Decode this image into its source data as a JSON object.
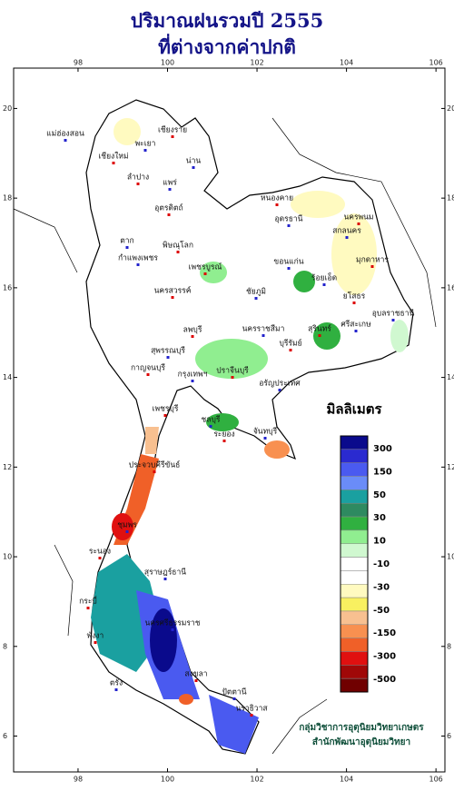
{
  "title": [
    "ปริมาณฝนรวมปี 2555",
    "ที่ต่างจากค่าปกติ"
  ],
  "map": {
    "lonticks": [
      98,
      100,
      102,
      104,
      106
    ],
    "latticks": [
      6,
      8,
      10,
      12,
      14,
      16,
      18,
      20
    ],
    "lonlim": [
      96.56,
      106.2
    ],
    "latlim": [
      5.2,
      20.9
    ],
    "places": [
      "แม่ฮ่องสอน",
      "เชียงราย",
      "พะเยา",
      "เชียงใหม่",
      "น่าน",
      "ลำปาง",
      "แพร่",
      "อุตรดิตถ์",
      "ตาก",
      "พิษณุโลก",
      "กำแพงเพชร",
      "หนองคาย",
      "อุดรธานี",
      "นครพนม",
      "สกลนคร",
      "มุกดาหาร",
      "ขอนแก่น",
      "เพชรบูรณ์",
      "ร้อยเอ็ด",
      "นครสวรรค์",
      "ชัยภูมิ",
      "ยโสธร",
      "อุบลราชธานี",
      "ลพบุรี",
      "นครราชสีมา",
      "สุรินทร์",
      "ศรีสะเกษ",
      "บุรีรัมย์",
      "สุพรรณบุรี",
      "กาญจนบุรี",
      "กรุงเทพฯ",
      "ปราจีนบุรี",
      "อรัญประเทศ",
      "เพชรบุรี",
      "ชลบุรี",
      "ระยอง",
      "จันทบุรี",
      "ประจวบคีรีขันธ์",
      "ชุมพร",
      "ระนอง",
      "สุราษฎร์ธานี",
      "กระบี่",
      "นครศรีธรรมราช",
      "พังงา",
      "ตรัง",
      "สงขลา",
      "ปัตตานี",
      "นราธิวาส"
    ]
  },
  "legend": {
    "title": "มิลลิเมตร",
    "colors": [
      "#0a0a8c",
      "#2a2ad0",
      "#4a5af0",
      "#6a8cf8",
      "#1aa0a0",
      "#2e8a60",
      "#30b040",
      "#90ee90",
      "#d0f8d0",
      "#ffffff",
      "#ffffff",
      "#fffac0",
      "#f8f060",
      "#f8c090",
      "#f89050",
      "#f06028",
      "#e01010",
      "#a00808",
      "#700000"
    ],
    "labels": [
      300,
      150,
      50,
      30,
      10,
      -10,
      -30,
      -50,
      -150,
      -300,
      -500
    ]
  },
  "credits": [
    "กลุ่มวิชาการอุตุนิยมวิทยาเกษตร",
    "สำนักพัฒนาอุตุนิยมวิทยา"
  ]
}
